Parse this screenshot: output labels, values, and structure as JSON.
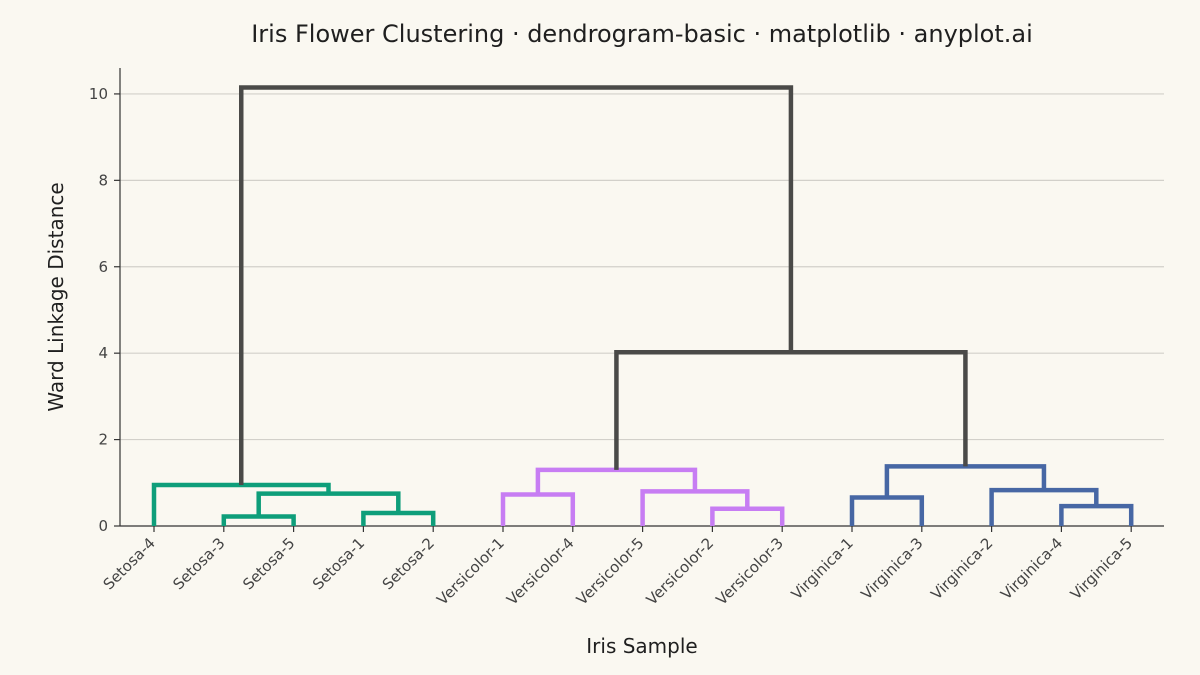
{
  "chart_data": {
    "type": "dendrogram",
    "title": "Iris Flower Clustering · dendrogram-basic · matplotlib · anyplot.ai",
    "xlabel": "Iris Sample",
    "ylabel": "Ward Linkage Distance",
    "ylim": [
      0,
      10.6
    ],
    "yticks": [
      0,
      2,
      4,
      6,
      8,
      10
    ],
    "grid": "horizontal",
    "leaves": [
      "Setosa-4",
      "Setosa-3",
      "Setosa-5",
      "Setosa-1",
      "Setosa-2",
      "Versicolor-1",
      "Versicolor-4",
      "Versicolor-5",
      "Versicolor-2",
      "Versicolor-3",
      "Virginica-1",
      "Virginica-3",
      "Virginica-2",
      "Virginica-4",
      "Virginica-5"
    ],
    "colors": {
      "setosa": "#0E9E7A",
      "versicolor": "#C77DF3",
      "virginica": "#4767A4",
      "above_threshold": "#4A4A48"
    },
    "merges": [
      {
        "left": "Setosa-3",
        "right": "Setosa-5",
        "height": 0.22,
        "color": "setosa"
      },
      {
        "left": "Setosa-1",
        "right": "Setosa-2",
        "height": 0.3,
        "color": "setosa"
      },
      {
        "left": "Setosa-3+Setosa-5",
        "right": "Setosa-1+Setosa-2",
        "height": 0.75,
        "color": "setosa"
      },
      {
        "left": "Setosa-4",
        "right": "Setosa-3+Setosa-5+Setosa-1+Setosa-2",
        "height": 0.95,
        "color": "setosa"
      },
      {
        "left": "Versicolor-1",
        "right": "Versicolor-4",
        "height": 0.73,
        "color": "versicolor"
      },
      {
        "left": "Versicolor-2",
        "right": "Versicolor-3",
        "height": 0.4,
        "color": "versicolor"
      },
      {
        "left": "Versicolor-5",
        "right": "Versicolor-2+Versicolor-3",
        "height": 0.8,
        "color": "versicolor"
      },
      {
        "left": "Versicolor-1+Versicolor-4",
        "right": "Versicolor-5+Versicolor-2+Versicolor-3",
        "height": 1.3,
        "color": "versicolor"
      },
      {
        "left": "Virginica-1",
        "right": "Virginica-3",
        "height": 0.66,
        "color": "virginica"
      },
      {
        "left": "Virginica-4",
        "right": "Virginica-5",
        "height": 0.46,
        "color": "virginica"
      },
      {
        "left": "Virginica-2",
        "right": "Virginica-4+Virginica-5",
        "height": 0.83,
        "color": "virginica"
      },
      {
        "left": "Virginica-1+Virginica-3",
        "right": "Virginica-2+Virginica-4+Virginica-5",
        "height": 1.38,
        "color": "virginica"
      },
      {
        "left": "Versicolor",
        "right": "Virginica",
        "height": 4.02,
        "color": "above_threshold"
      },
      {
        "left": "Setosa",
        "right": "Versicolor+Virginica",
        "height": 10.15,
        "color": "above_threshold"
      }
    ]
  }
}
